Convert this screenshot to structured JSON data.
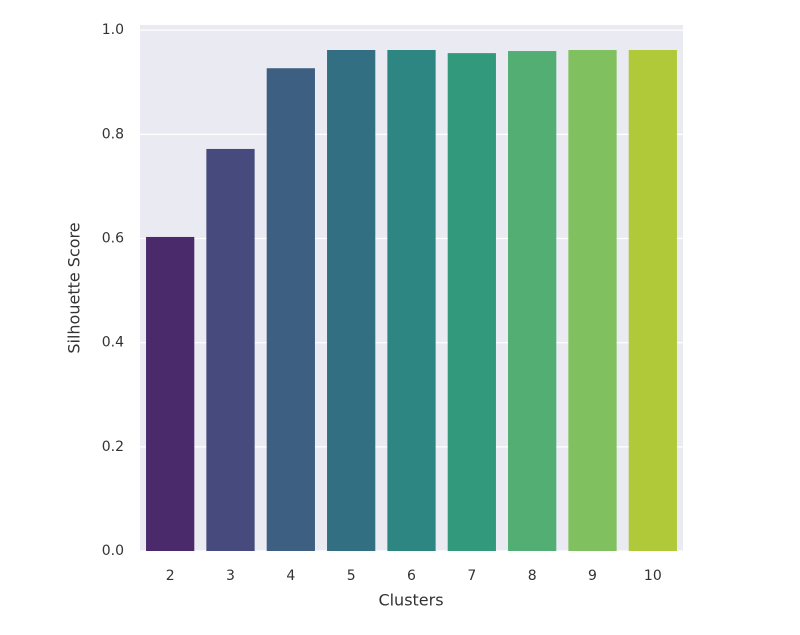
{
  "chart_data": {
    "type": "bar",
    "x_label": "Clusters",
    "y_label": "Silhouette Score",
    "categories": [
      "2",
      "3",
      "4",
      "5",
      "6",
      "7",
      "8",
      "9",
      "10"
    ],
    "values": [
      0.603,
      0.772,
      0.927,
      0.962,
      0.962,
      0.956,
      0.96,
      0.962,
      0.962
    ],
    "colors": [
      "#4b2a6b",
      "#474a7c",
      "#3d5f82",
      "#336f83",
      "#2d8682",
      "#33997c",
      "#52ae72",
      "#80c05e",
      "#b0c938"
    ],
    "ylim": [
      0,
      1.01
    ],
    "yticks": [
      {
        "value": 0,
        "label": "0.0"
      },
      0.2,
      0.4,
      0.6,
      0.8,
      {
        "value": 1,
        "label": "1.0"
      }
    ],
    "grid": true
  }
}
